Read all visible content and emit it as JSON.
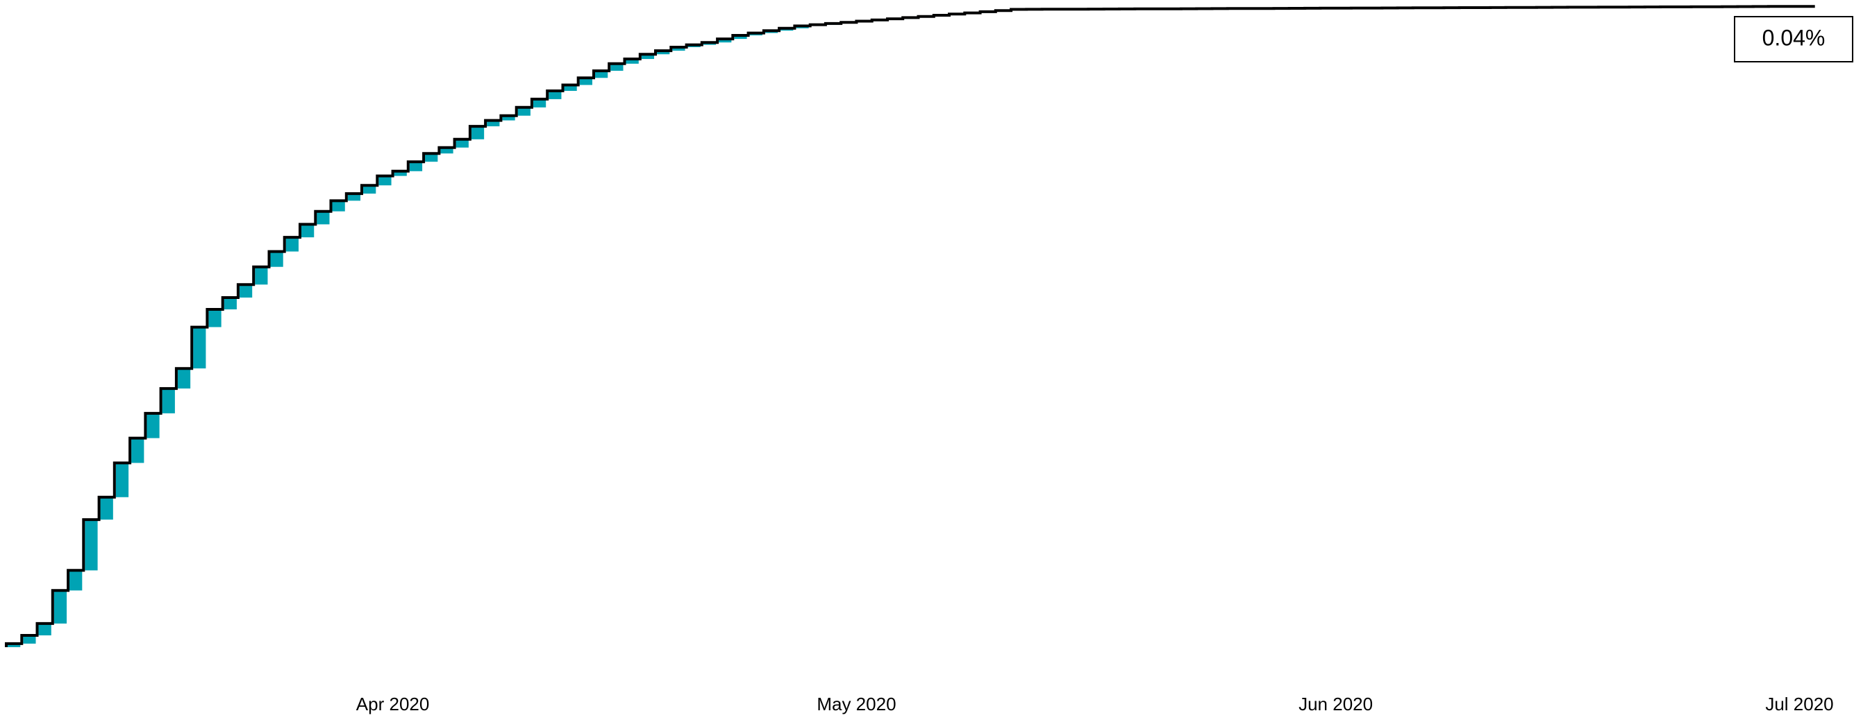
{
  "chart_data": {
    "type": "step-increment",
    "annotation": "0.04%",
    "xlim": [
      0,
      118
    ],
    "xticks": [
      {
        "value": 25,
        "label": "Apr 2020"
      },
      {
        "value": 55,
        "label": "May 2020"
      },
      {
        "value": 86,
        "label": "Jun 2020"
      },
      {
        "value": 116,
        "label": "Jul 2020"
      }
    ],
    "ylim": [
      0,
      545
    ],
    "bar_color": "#00a3b4",
    "line_color": "#000000",
    "values": [
      3,
      7,
      10,
      28,
      17,
      43,
      19,
      29,
      21,
      21,
      21,
      17,
      35,
      15,
      10,
      11,
      15,
      13,
      12,
      11,
      11,
      9,
      6,
      7,
      8,
      4,
      8,
      7,
      5,
      7,
      11,
      5,
      4,
      7,
      7,
      7,
      5,
      6,
      6,
      6,
      4,
      4,
      3,
      3,
      2,
      2,
      3,
      3,
      2,
      2,
      2,
      2,
      1,
      1,
      1,
      1,
      1,
      1,
      1,
      1,
      1,
      1,
      1,
      1,
      1,
      1,
      0.05,
      0.05,
      0.05,
      0.05,
      0.05,
      0.05,
      0.05,
      0.05,
      0.05,
      0.05,
      0.05,
      0.05,
      0.05,
      0.05,
      0.05,
      0.05,
      0.05,
      0.05,
      0.05,
      0.05,
      0.05,
      0.05,
      0.05,
      0.05,
      0.05,
      0.05,
      0.05,
      0.05,
      0.05,
      0.05,
      0.05,
      0.05,
      0.05,
      0.05,
      0.05,
      0.05,
      0.05,
      0.05,
      0.05,
      0.05,
      0.05,
      0.05,
      0.05,
      0.05,
      0.05,
      0.05,
      0.05,
      0.05,
      0.05,
      0.05,
      0.05
    ]
  }
}
